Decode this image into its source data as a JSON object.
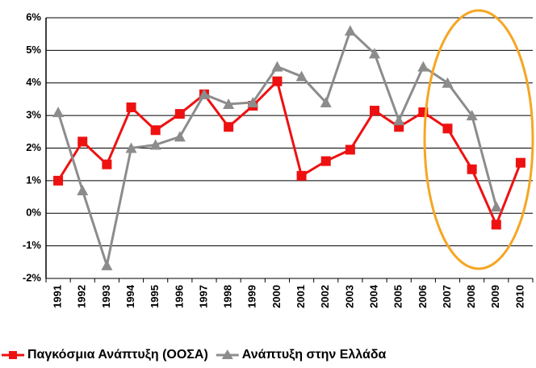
{
  "chart_data": {
    "type": "line",
    "categories": [
      "1991",
      "1992",
      "1993",
      "1994",
      "1995",
      "1996",
      "1997",
      "1998",
      "1999",
      "2000",
      "2001",
      "2002",
      "2003",
      "2004",
      "2005",
      "2006",
      "2007",
      "2008",
      "2009",
      "2010"
    ],
    "series": [
      {
        "name": "Παγκόσμια Ανάπτυξη (ΟΟΣΑ)",
        "color": "#ee1111",
        "marker": "square",
        "values": [
          1.0,
          2.2,
          1.5,
          3.25,
          2.55,
          3.05,
          3.65,
          2.65,
          3.3,
          4.05,
          1.15,
          1.6,
          1.95,
          3.15,
          2.65,
          3.1,
          2.6,
          1.35,
          -0.35,
          1.55
        ]
      },
      {
        "name": "Ανάπτυξη στην Ελλάδα",
        "color": "#8c8c8c",
        "marker": "triangle",
        "values": [
          3.1,
          0.7,
          -1.6,
          2.0,
          2.1,
          2.35,
          3.65,
          3.35,
          3.4,
          4.5,
          4.2,
          3.4,
          5.6,
          4.9,
          2.85,
          4.5,
          4.0,
          3.0,
          0.2,
          null
        ]
      }
    ],
    "ylim": [
      -2,
      6
    ],
    "yticks": [
      {
        "value": -2,
        "label": "-2%"
      },
      {
        "value": -1,
        "label": "-1%"
      },
      {
        "value": 0,
        "label": "0%"
      },
      {
        "value": 1,
        "label": "1%"
      },
      {
        "value": 2,
        "label": "2%"
      },
      {
        "value": 3,
        "label": "3%"
      },
      {
        "value": 4,
        "label": "4%"
      },
      {
        "value": 5,
        "label": "5%"
      },
      {
        "value": 6,
        "label": "6%"
      }
    ],
    "grid": true
  }
}
